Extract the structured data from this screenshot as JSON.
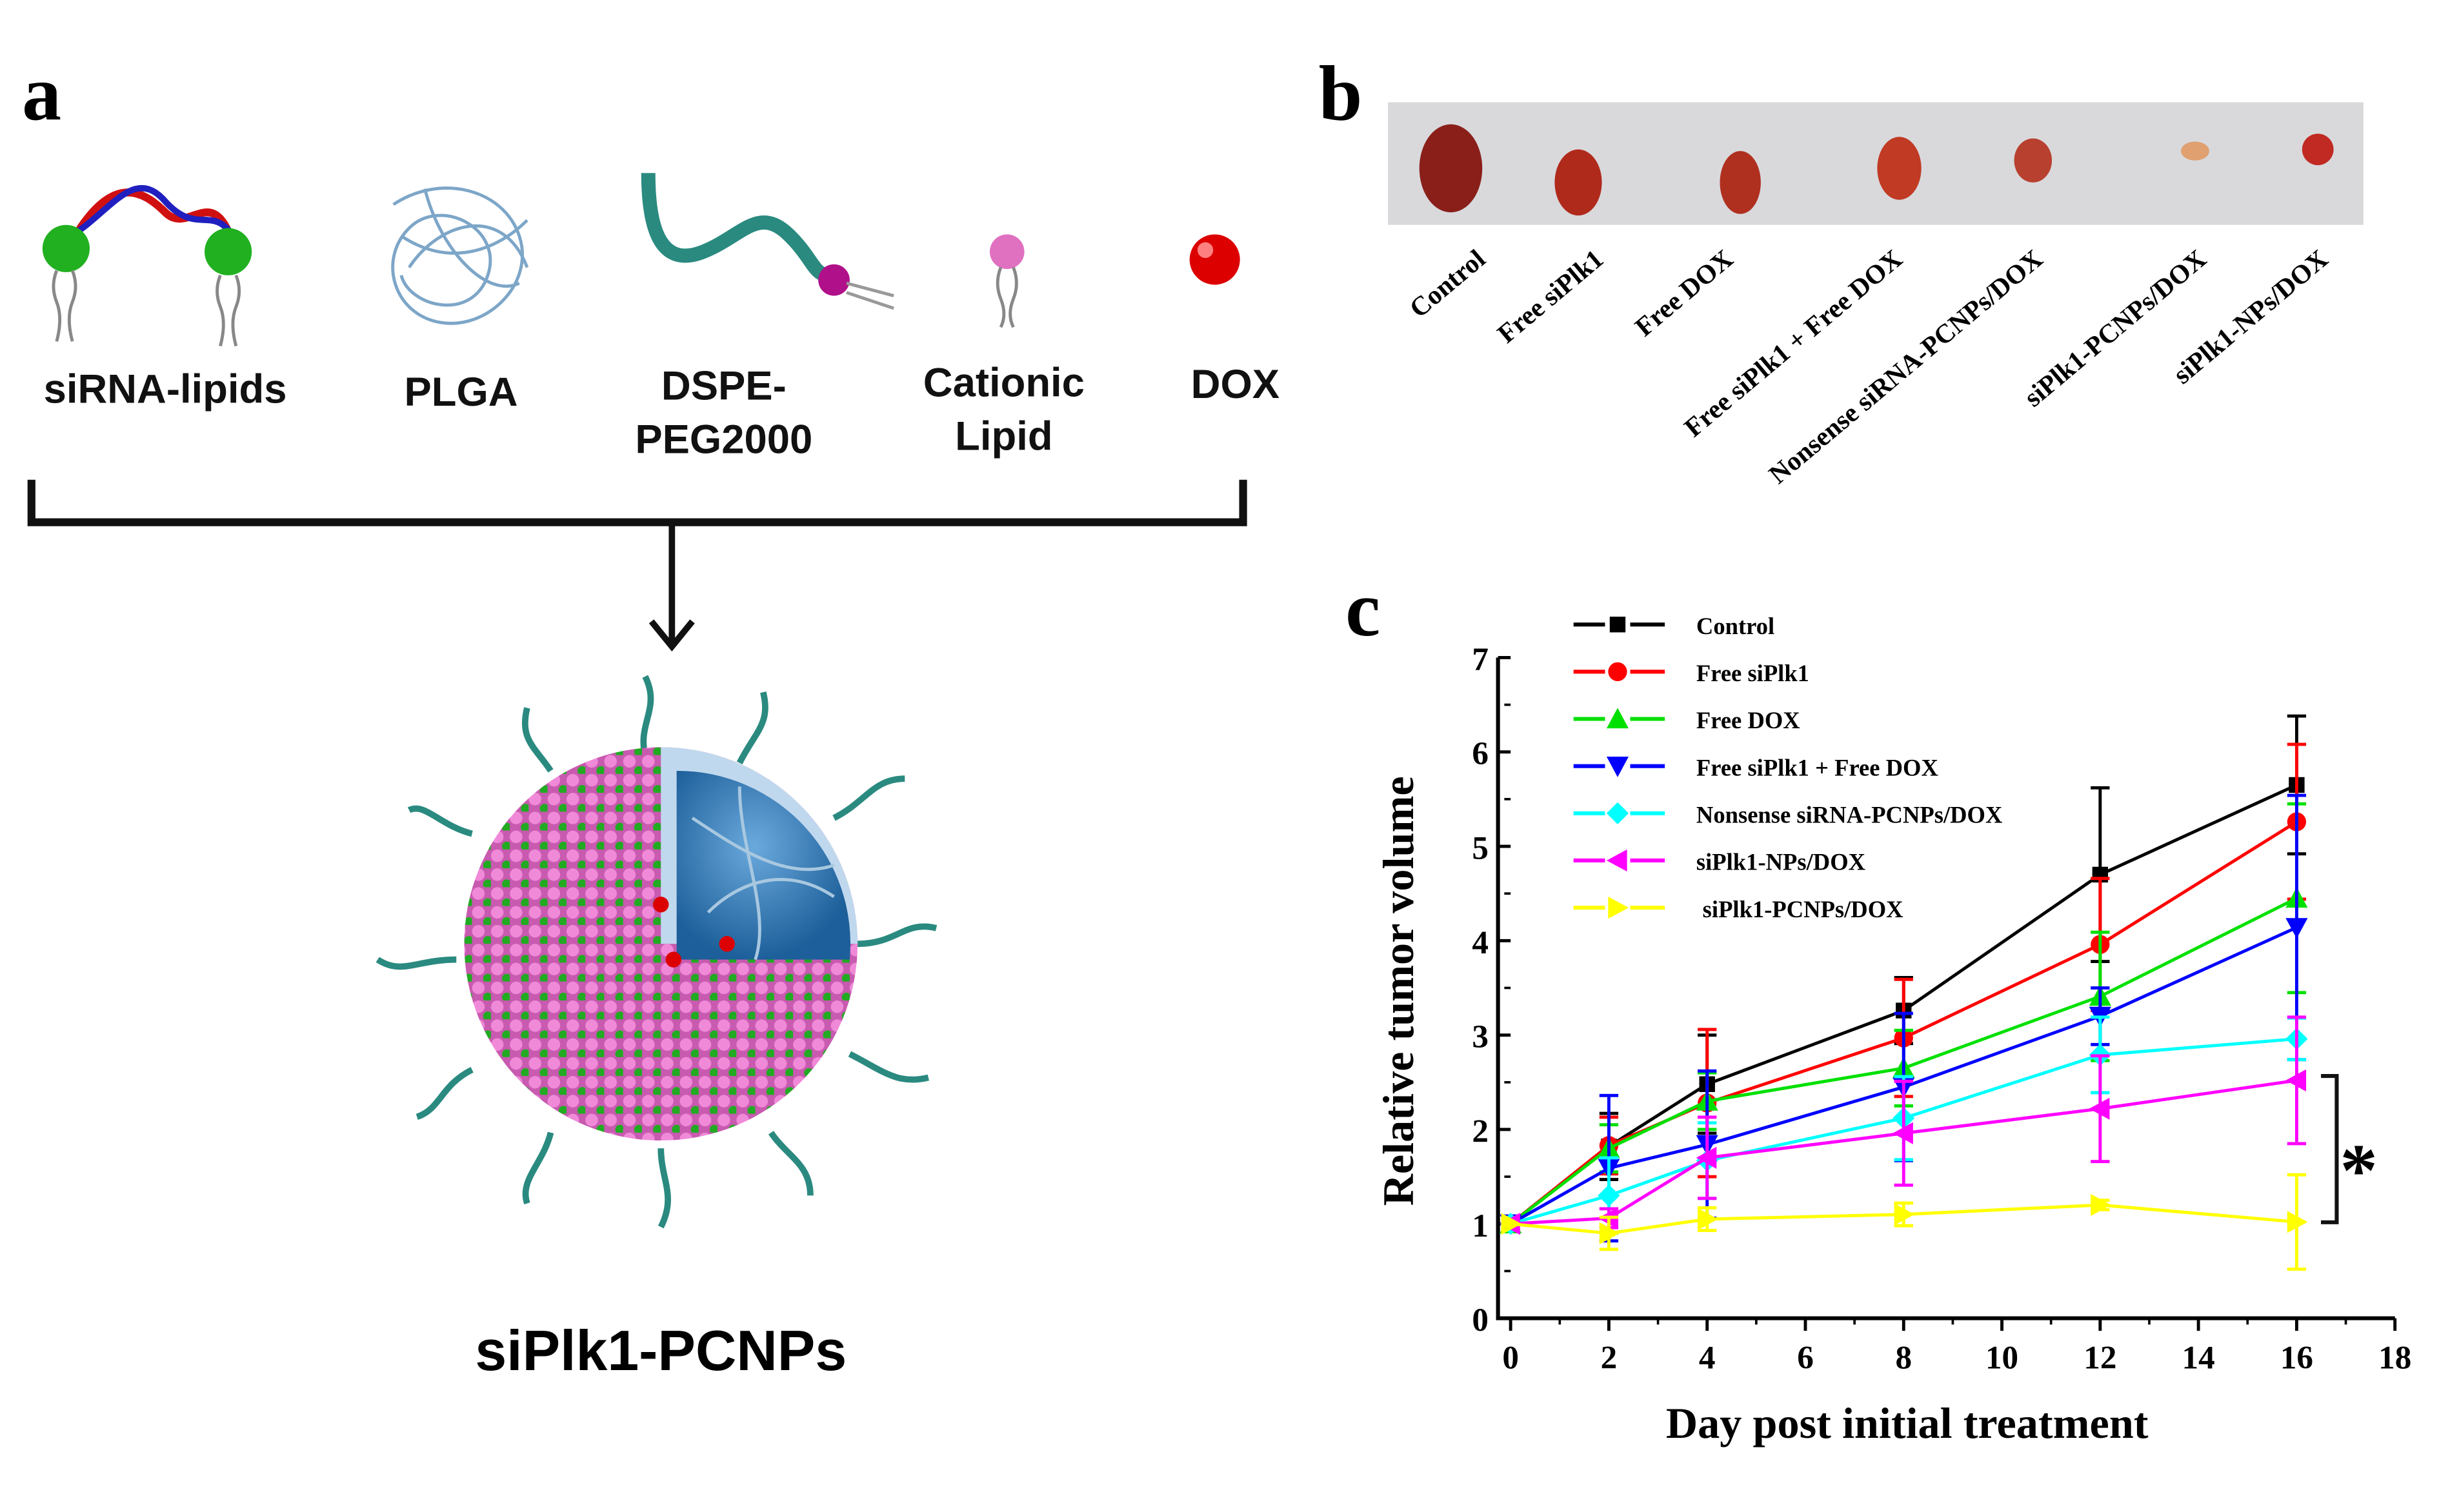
{
  "panels": {
    "a": {
      "letter": "a",
      "components": [
        {
          "label": "siRNA-lipids",
          "icon": "sirna-lipid-icon"
        },
        {
          "label": "PLGA",
          "icon": "plga-polymer-icon"
        },
        {
          "label": "DSPE-\nPEG2000",
          "icon": "dspe-peg-icon"
        },
        {
          "label": "Cationic\nLipid",
          "icon": "cationic-lipid-icon"
        },
        {
          "label": "DOX",
          "icon": "dox-sphere-icon"
        }
      ],
      "product_label": "siPlk1-PCNPs"
    },
    "b": {
      "letter": "b",
      "groups": [
        "Control",
        "Free siPlk1",
        "Free DOX",
        "Free siPlk1 + Free DOX",
        "Nonsense siRNA-PCNPs/DOX",
        "siPlk1-PCNPs/DOX",
        "siPlk1-NPs/DOX"
      ],
      "background_color": "#d9d9dc"
    },
    "c": {
      "letter": "c",
      "significance_mark": "*"
    }
  },
  "chart_data": {
    "type": "line",
    "xlabel": "Day post initial treatment",
    "ylabel": "Relative tumor volume",
    "xlim": [
      0,
      18
    ],
    "ylim": [
      0,
      7
    ],
    "xticks": [
      "0",
      "2",
      "4",
      "6",
      "8",
      "10",
      "12",
      "14",
      "16",
      "18"
    ],
    "yticks": [
      "0",
      "1",
      "2",
      "3",
      "4",
      "5",
      "6",
      "7"
    ],
    "grid": false,
    "legend_position": "top-left",
    "x": [
      0,
      2,
      4,
      8,
      12,
      16
    ],
    "series": [
      {
        "name": "Control",
        "color": "#000000",
        "marker": "square",
        "values": [
          1,
          1.82,
          2.48,
          3.26,
          4.7,
          5.65
        ],
        "errors": [
          0,
          0.35,
          0.52,
          0.35,
          0.92,
          0.73
        ]
      },
      {
        "name": "Free siPlk1",
        "color": "#ff0000",
        "marker": "circle",
        "values": [
          1,
          1.83,
          2.28,
          2.97,
          3.96,
          5.26
        ],
        "errors": [
          0,
          0.3,
          0.78,
          0.62,
          0.7,
          0.82
        ]
      },
      {
        "name": "Free DOX",
        "color": "#00e000",
        "marker": "triangle-up",
        "values": [
          1,
          1.8,
          2.3,
          2.65,
          3.41,
          4.45
        ],
        "errors": [
          0,
          0.25,
          0.3,
          0.4,
          0.68,
          1.0
        ]
      },
      {
        "name": "Free siPlk1 + Free DOX",
        "color": "#0000ff",
        "marker": "triangle-down",
        "values": [
          1,
          1.59,
          1.84,
          2.45,
          3.2,
          4.14
        ],
        "errors": [
          0,
          0.77,
          0.78,
          0.78,
          0.3,
          1.4
        ]
      },
      {
        "name": "Nonsense siRNA-PCNPs/DOX",
        "color": "#00ffff",
        "marker": "diamond",
        "values": [
          1,
          1.3,
          1.67,
          2.12,
          2.79,
          2.96
        ],
        "errors": [
          0,
          0.4,
          0.4,
          0.44,
          0.4,
          0.22
        ]
      },
      {
        "name": "siPlk1-NPs/DOX",
        "color": "#ff00ff",
        "marker": "triangle-left",
        "values": [
          1,
          1.06,
          1.7,
          1.96,
          2.22,
          2.52
        ],
        "errors": [
          0,
          0.1,
          0.43,
          0.55,
          0.56,
          0.67
        ]
      },
      {
        "name": "siPlk1-PCNPs/DOX",
        "color": "#ffff00",
        "marker": "triangle-right",
        "values": [
          1,
          0.9,
          1.05,
          1.1,
          1.2,
          1.02
        ],
        "errors": [
          0,
          0.17,
          0.12,
          0.12,
          0.05,
          0.5
        ]
      }
    ]
  }
}
